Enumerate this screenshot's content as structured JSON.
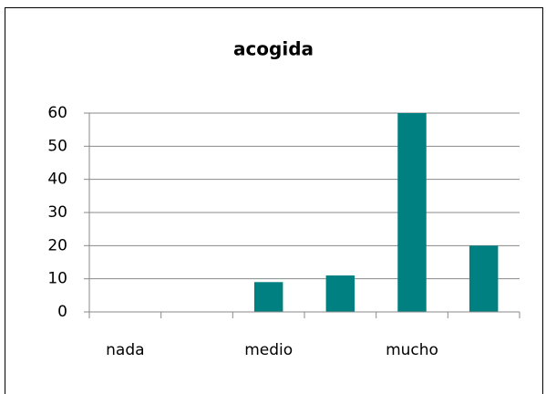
{
  "chart_data": {
    "type": "bar",
    "title": "acogida",
    "categories": [
      "nada",
      null,
      "medio",
      null,
      "mucho",
      null
    ],
    "values": [
      0,
      0,
      9,
      11,
      60,
      20
    ],
    "color": "#008080",
    "ylim": [
      0,
      60
    ],
    "yticks": [
      0,
      10,
      20,
      30,
      40,
      50,
      60
    ],
    "grid": true
  }
}
